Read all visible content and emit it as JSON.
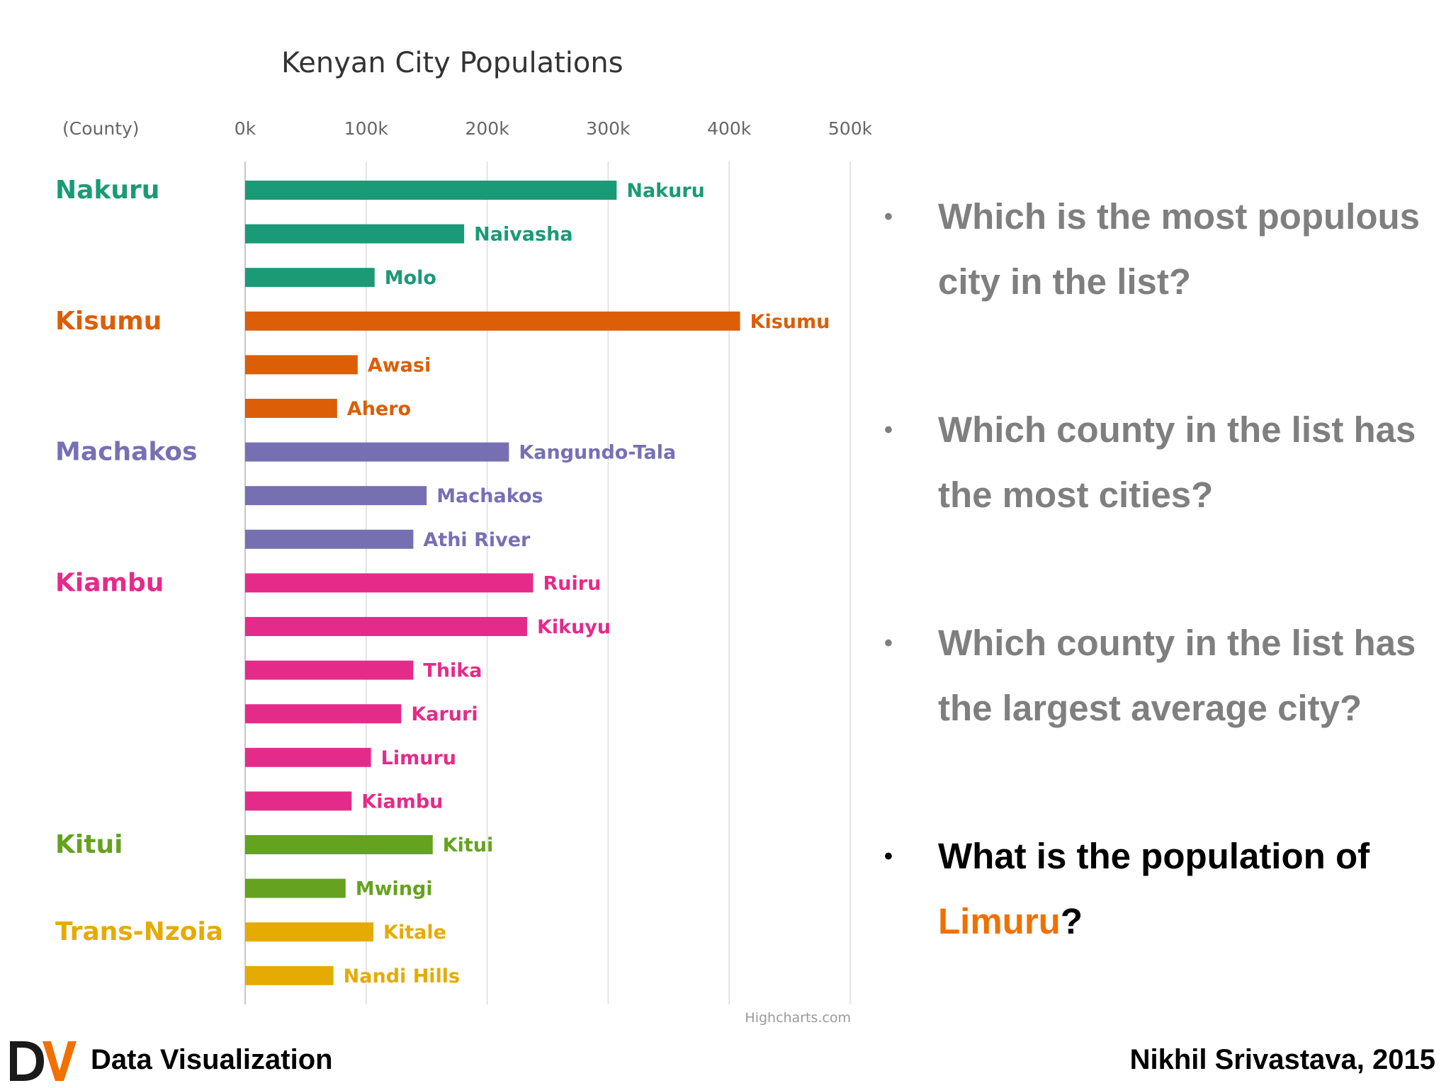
{
  "colors": {
    "Nakuru": "#1a9a76",
    "Kisumu": "#dc5e06",
    "Machakos": "#7670b3",
    "Kiambu": "#e52b8a",
    "Kitui": "#65a21f",
    "Trans-Nzoia": "#e5ab03",
    "question_text": "#7f7f7f",
    "question_current": "#000000",
    "highlight": "#f07000",
    "logo": "#f07000"
  },
  "chart_data": {
    "type": "bar",
    "orientation": "horizontal",
    "title": "Kenyan City Populations",
    "group_axis_label": "(County)",
    "xlim": [
      0,
      500000
    ],
    "tick_values": [
      0,
      100000,
      200000,
      300000,
      400000,
      500000
    ],
    "tick_labels": [
      "0k",
      "100k",
      "200k",
      "300k",
      "400k",
      "500k"
    ],
    "grid": true,
    "credits": "Highcharts.com",
    "groups": [
      {
        "county": "Nakuru",
        "cities": [
          {
            "name": "Nakuru",
            "value": 307000
          },
          {
            "name": "Naivasha",
            "value": 181000
          },
          {
            "name": "Molo",
            "value": 107000
          }
        ]
      },
      {
        "county": "Kisumu",
        "cities": [
          {
            "name": "Kisumu",
            "value": 409000
          },
          {
            "name": "Awasi",
            "value": 93000
          },
          {
            "name": "Ahero",
            "value": 76000
          }
        ]
      },
      {
        "county": "Machakos",
        "cities": [
          {
            "name": "Kangundo-Tala",
            "value": 218000
          },
          {
            "name": "Machakos",
            "value": 150000
          },
          {
            "name": "Athi River",
            "value": 139000
          }
        ]
      },
      {
        "county": "Kiambu",
        "cities": [
          {
            "name": "Ruiru",
            "value": 238000
          },
          {
            "name": "Kikuyu",
            "value": 233000
          },
          {
            "name": "Thika",
            "value": 139000
          },
          {
            "name": "Karuri",
            "value": 129000
          },
          {
            "name": "Limuru",
            "value": 104000
          },
          {
            "name": "Kiambu",
            "value": 88000
          }
        ]
      },
      {
        "county": "Kitui",
        "cities": [
          {
            "name": "Kitui",
            "value": 155000
          },
          {
            "name": "Mwingi",
            "value": 83000
          }
        ]
      },
      {
        "county": "Trans-Nzoia",
        "cities": [
          {
            "name": "Kitale",
            "value": 106000
          },
          {
            "name": "Nandi Hills",
            "value": 73000
          }
        ]
      }
    ]
  },
  "questions": [
    {
      "pre": "Which is the most populous city in the list?",
      "highlight": "",
      "post": ""
    },
    {
      "pre": "Which county in the list has the most cities?",
      "highlight": "",
      "post": ""
    },
    {
      "pre": "Which county in the list has the largest average city?",
      "highlight": "",
      "post": ""
    },
    {
      "pre": "What is the population of ",
      "highlight": "Limuru",
      "post": "?"
    }
  ],
  "current_question": 3,
  "bullet": "•",
  "footer": {
    "logo_text": "DV",
    "title": "Data Visualization",
    "author": "Nikhil Srivastava, 2015"
  }
}
